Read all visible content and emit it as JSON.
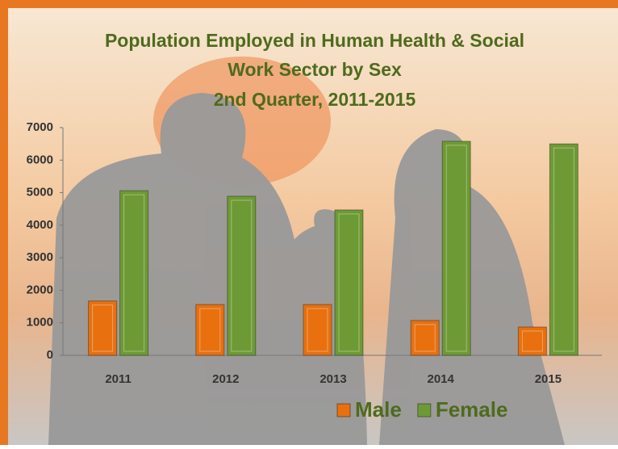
{
  "chart_data": {
    "type": "bar",
    "title": "Population Employed in Human Health & Social Work Sector by Sex",
    "subtitle": "2nd Quarter, 2011-2015",
    "categories": [
      "2011",
      "2012",
      "2013",
      "2014",
      "2015"
    ],
    "series": [
      {
        "name": "Male",
        "color": "#e8700f",
        "values": [
          1670,
          1560,
          1560,
          1070,
          870
        ]
      },
      {
        "name": "Female",
        "color": "#6e9a35",
        "values": [
          5060,
          4890,
          4470,
          6580,
          6500
        ]
      }
    ],
    "ylim": [
      0,
      7000
    ],
    "yticks": [
      0,
      1000,
      2000,
      3000,
      4000,
      5000,
      6000,
      7000
    ],
    "legend": "bottom"
  }
}
